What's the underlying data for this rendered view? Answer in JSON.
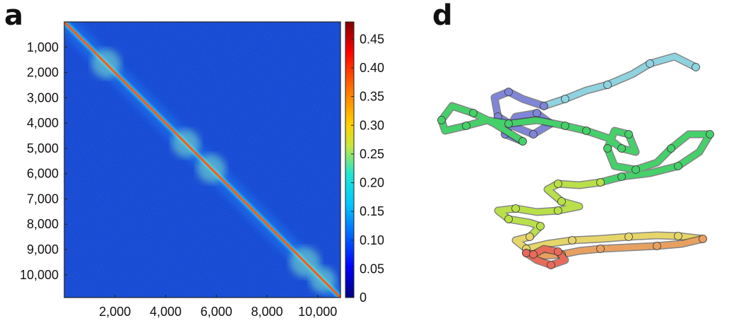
{
  "panels": {
    "a": "a",
    "d": "d"
  },
  "chart_data": [
    {
      "type": "heatmap",
      "panel": "a",
      "title": "",
      "xlabel": "",
      "ylabel": "",
      "x_range": [
        0,
        10900
      ],
      "y_range": [
        0,
        10900
      ],
      "y_inverted": true,
      "x_ticks": [
        2000,
        4000,
        6000,
        8000,
        10000
      ],
      "x_tick_labels": [
        "2,000",
        "4,000",
        "6,000",
        "8,000",
        "10,000"
      ],
      "y_ticks": [
        1000,
        2000,
        3000,
        4000,
        5000,
        6000,
        7000,
        8000,
        9000,
        10000
      ],
      "y_tick_labels": [
        "1,000",
        "2,000",
        "3,000",
        "4,000",
        "5,000",
        "6,000",
        "7,000",
        "8,000",
        "9,000",
        "10,000"
      ],
      "colorbar": {
        "range": [
          0,
          0.48
        ],
        "ticks": [
          0,
          0.05,
          0.1,
          0.15,
          0.2,
          0.25,
          0.3,
          0.35,
          0.4,
          0.45
        ],
        "tick_labels": [
          "0",
          "0.05",
          "0.10",
          "0.15",
          "0.20",
          "0.25",
          "0.30",
          "0.35",
          "0.40",
          "0.45"
        ],
        "colormap": "jet"
      },
      "diagonal_value": 0.42,
      "background_value": 0.06,
      "enriched_domains": [
        {
          "center": 1650,
          "value": 0.22
        },
        {
          "center": 4800,
          "value": 0.2
        },
        {
          "center": 5800,
          "value": 0.21
        },
        {
          "center": 9500,
          "value": 0.24
        },
        {
          "center": 10200,
          "value": 0.16
        }
      ]
    },
    {
      "type": "other",
      "panel": "d",
      "description_kind": "3D chromatin trace colored by position (blue to red)",
      "colors": {
        "start": "#8fd3e0",
        "violet": "#7f85d8",
        "green": "#45d06a",
        "yellowgreen": "#b9e04a",
        "orange": "#e8a060",
        "end": "#e86a5a"
      }
    }
  ]
}
